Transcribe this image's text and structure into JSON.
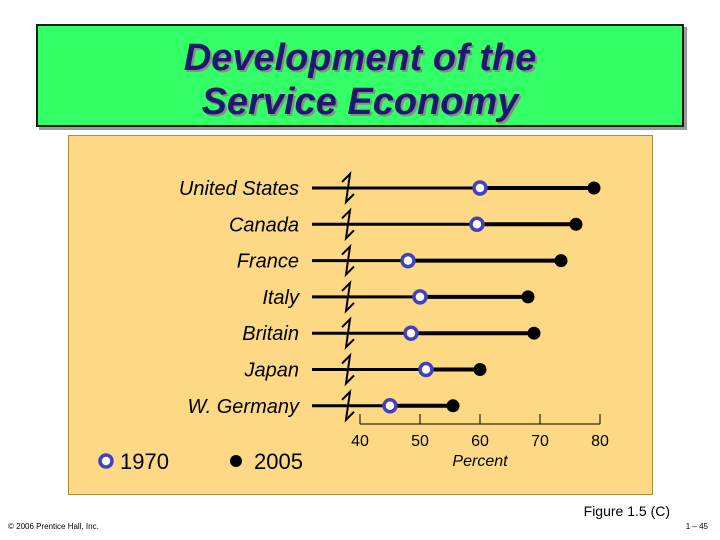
{
  "title": {
    "line1": "Development of the",
    "line2": "Service Economy"
  },
  "colors": {
    "title_bg": "#33ff66",
    "title_text": "#1a1a6e",
    "panel_bg": "#fdd885",
    "marker_1970": "#4040c0",
    "marker_2005": "#000000"
  },
  "chart_data": {
    "type": "dot-range",
    "title": "Development of the Service Economy",
    "xlabel": "Percent",
    "ylabel": "",
    "xlim": [
      40,
      80
    ],
    "xticks": [
      40,
      50,
      60,
      70,
      80
    ],
    "categories": [
      "United States",
      "Canada",
      "France",
      "Italy",
      "Britain",
      "Japan",
      "W. Germany"
    ],
    "series": [
      {
        "name": "1970",
        "values": [
          60,
          59.5,
          48,
          50,
          48.5,
          51,
          45
        ]
      },
      {
        "name": "2005",
        "values": [
          79,
          76,
          73.5,
          68,
          69,
          60,
          55.5
        ]
      }
    ],
    "legend": [
      {
        "label": "1970",
        "marker": "open-circle"
      },
      {
        "label": "2005",
        "marker": "filled-circle"
      }
    ],
    "legend_position": "bottom-left",
    "axis_break": true
  },
  "footer": {
    "copyright": "© 2006 Prentice Hall, Inc.",
    "figure": "Figure 1.5 (C)",
    "page": "1 – 45"
  }
}
